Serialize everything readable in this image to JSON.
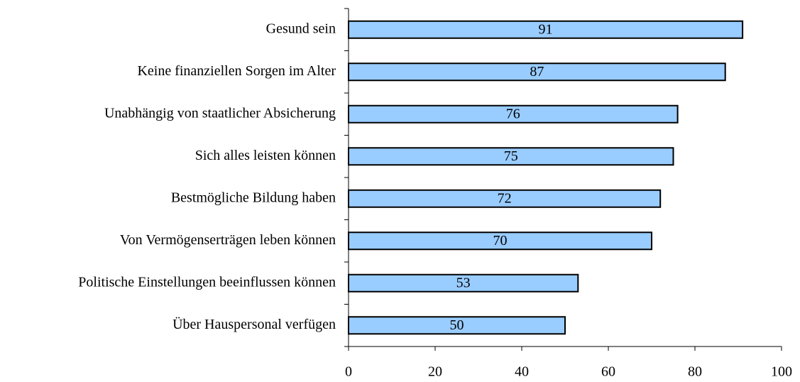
{
  "chart_data": {
    "type": "bar",
    "orientation": "horizontal",
    "categories": [
      "Gesund sein",
      "Keine finanziellen Sorgen im Alter",
      "Unabhängig von staatlicher Absicherung",
      "Sich alles leisten können",
      "Bestmögliche Bildung haben",
      "Von Vermögenserträgen leben können",
      "Politische Einstellungen beeinflussen können",
      "Über Hauspersonal verfügen"
    ],
    "values": [
      91,
      87,
      76,
      75,
      72,
      70,
      53,
      50
    ],
    "color": "#99ccff",
    "xlim": [
      0,
      100
    ],
    "xticks": [
      0,
      20,
      40,
      60,
      80,
      100
    ],
    "grid": false
  }
}
